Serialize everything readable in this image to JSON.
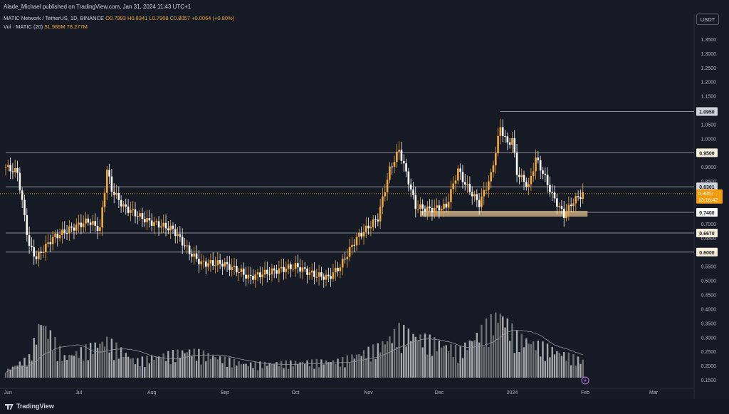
{
  "header": {
    "publisher": "Alade_Michael published on TradingView.com, Jan 31, 2024 11:43 UTC+1",
    "symbol": "MATIC Network / TetherUS, 1D, BINANCE",
    "open": "O0.7993",
    "high": "H0.8341",
    "low": "L0.7908",
    "close": "C0.8057",
    "change": "+0.0064 (+0.80%)",
    "volume_label": "Vol · MATIC (20)",
    "volume_value": "51.986M",
    "volume_ma": "78.277M"
  },
  "currency_button": "USDT",
  "footer": {
    "brand": "TradingView"
  },
  "colors": {
    "background": "#161a25",
    "up": "#f2a93b",
    "down": "#ffffff",
    "level_line": "#8a8d96",
    "support_zone": "#c4a882",
    "current_price": "#f29d0f"
  },
  "chart_data": {
    "type": "candlestick",
    "title": "MATIC Network / TetherUS, 1D, BINANCE",
    "x_axis_labels": [
      "Jun",
      "Jul",
      "Aug",
      "Sep",
      "Oct",
      "Nov",
      "Dec",
      "2024",
      "Feb",
      "Mar"
    ],
    "y_axis_ticks": [
      0.15,
      0.2,
      0.25,
      0.3,
      0.35,
      0.4,
      0.45,
      0.5,
      0.55,
      0.6,
      0.65,
      0.7,
      0.75,
      0.8,
      0.85,
      0.9,
      0.95,
      1.0,
      1.05,
      1.1,
      1.15,
      1.2,
      1.25,
      1.3,
      1.35
    ],
    "y_tick_labels": [
      "0.1500",
      "0.2000",
      "0.2500",
      "0.3000",
      "0.3500",
      "0.4000",
      "0.4500",
      "0.5000",
      "0.5500",
      "0.6000",
      "0.6500",
      "0.7000",
      "0.7500",
      "0.8000",
      "0.8500",
      "0.9000",
      "0.9500",
      "1.0000",
      "1.0500",
      "1.1000",
      "1.1500",
      "1.2000",
      "1.2500",
      "1.3000",
      "1.3500"
    ],
    "ylim": [
      0.135,
      1.375
    ],
    "price_path": [
      {
        "date": "2023-05-31",
        "price": 0.9
      },
      {
        "date": "2023-06-05",
        "price": 0.88
      },
      {
        "date": "2023-06-10",
        "price": 0.62
      },
      {
        "date": "2023-06-13",
        "price": 0.58
      },
      {
        "date": "2023-06-20",
        "price": 0.65
      },
      {
        "date": "2023-06-27",
        "price": 0.68
      },
      {
        "date": "2023-07-05",
        "price": 0.71
      },
      {
        "date": "2023-07-10",
        "price": 0.68
      },
      {
        "date": "2023-07-13",
        "price": 0.89
      },
      {
        "date": "2023-07-15",
        "price": 0.82
      },
      {
        "date": "2023-07-20",
        "price": 0.76
      },
      {
        "date": "2023-07-30",
        "price": 0.71
      },
      {
        "date": "2023-08-10",
        "price": 0.68
      },
      {
        "date": "2023-08-17",
        "price": 0.6
      },
      {
        "date": "2023-08-22",
        "price": 0.56
      },
      {
        "date": "2023-08-31",
        "price": 0.56
      },
      {
        "date": "2023-09-08",
        "price": 0.53
      },
      {
        "date": "2023-09-11",
        "price": 0.51
      },
      {
        "date": "2023-09-20",
        "price": 0.53
      },
      {
        "date": "2023-10-01",
        "price": 0.55
      },
      {
        "date": "2023-10-09",
        "price": 0.52
      },
      {
        "date": "2023-10-15",
        "price": 0.51
      },
      {
        "date": "2023-10-20",
        "price": 0.55
      },
      {
        "date": "2023-10-27",
        "price": 0.65
      },
      {
        "date": "2023-11-05",
        "price": 0.72
      },
      {
        "date": "2023-11-10",
        "price": 0.89
      },
      {
        "date": "2023-11-14",
        "price": 0.96
      },
      {
        "date": "2023-11-18",
        "price": 0.85
      },
      {
        "date": "2023-11-21",
        "price": 0.76
      },
      {
        "date": "2023-11-27",
        "price": 0.75
      },
      {
        "date": "2023-12-04",
        "price": 0.76
      },
      {
        "date": "2023-12-09",
        "price": 0.89
      },
      {
        "date": "2023-12-12",
        "price": 0.84
      },
      {
        "date": "2023-12-18",
        "price": 0.77
      },
      {
        "date": "2023-12-23",
        "price": 0.87
      },
      {
        "date": "2023-12-27",
        "price": 1.04
      },
      {
        "date": "2023-12-30",
        "price": 0.98
      },
      {
        "date": "2024-01-01",
        "price": 1.0
      },
      {
        "date": "2024-01-03",
        "price": 0.88
      },
      {
        "date": "2024-01-08",
        "price": 0.83
      },
      {
        "date": "2024-01-11",
        "price": 0.93
      },
      {
        "date": "2024-01-14",
        "price": 0.88
      },
      {
        "date": "2024-01-18",
        "price": 0.8
      },
      {
        "date": "2024-01-23",
        "price": 0.73
      },
      {
        "date": "2024-01-27",
        "price": 0.78
      },
      {
        "date": "2024-01-31",
        "price": 0.8057
      }
    ],
    "volume_path": [
      {
        "date": "2023-05-31",
        "volume_pct": 0.1
      },
      {
        "date": "2023-06-10",
        "volume_pct": 0.3
      },
      {
        "date": "2023-06-15",
        "volume_pct": 0.85
      },
      {
        "date": "2023-06-25",
        "volume_pct": 0.3
      },
      {
        "date": "2023-07-13",
        "volume_pct": 0.55
      },
      {
        "date": "2023-07-25",
        "volume_pct": 0.25
      },
      {
        "date": "2023-08-17",
        "volume_pct": 0.4
      },
      {
        "date": "2023-09-10",
        "volume_pct": 0.2
      },
      {
        "date": "2023-10-20",
        "volume_pct": 0.25
      },
      {
        "date": "2023-11-05",
        "volume_pct": 0.45
      },
      {
        "date": "2023-11-14",
        "volume_pct": 0.7
      },
      {
        "date": "2023-12-10",
        "volume_pct": 0.4
      },
      {
        "date": "2023-12-27",
        "volume_pct": 0.95
      },
      {
        "date": "2024-01-03",
        "volume_pct": 0.6
      },
      {
        "date": "2024-01-31",
        "volume_pct": 0.25
      }
    ],
    "horizontal_levels": [
      {
        "price": 1.095,
        "label": "1.0950",
        "start_date": "2023-12-27"
      },
      {
        "price": 0.95,
        "label": "0.9500",
        "start_date": "2023-05-31"
      },
      {
        "price": 0.8301,
        "label": "0.8301",
        "start_date": "2023-05-31"
      },
      {
        "price": 0.74,
        "label": "0.7400",
        "start_date": "2023-11-23"
      },
      {
        "price": 0.667,
        "label": "0.6670",
        "start_date": "2023-05-31"
      },
      {
        "price": 0.6,
        "label": "0.6000",
        "start_date": "2023-05-31"
      }
    ],
    "support_zone": {
      "low": 0.725,
      "high": 0.745,
      "start_date": "2023-11-23",
      "end_date": "2024-01-31"
    },
    "current_price": {
      "price": 0.8057,
      "label": "0.8057",
      "countdown": "13:16:42"
    }
  }
}
